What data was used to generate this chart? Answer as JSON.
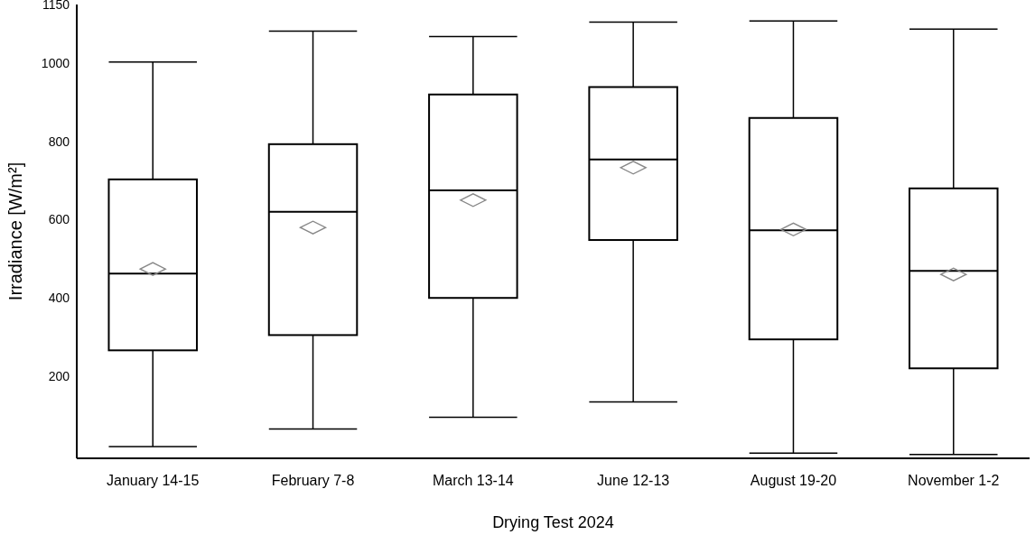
{
  "chart_data": {
    "type": "box",
    "xlabel": "Drying Test 2024",
    "ylabel": "Irradiance [W/m²]",
    "categories": [
      "January 14-15",
      "February 7-8",
      "March 13-14",
      "June 12-13",
      "August 19-20",
      "November 1-2"
    ],
    "ylim": [
      -10,
      1150
    ],
    "yticks": [
      200,
      400,
      600,
      800,
      1000,
      1150
    ],
    "grid": false,
    "boxes": [
      {
        "low": 20,
        "q1": 266,
        "median": 462,
        "q3": 703,
        "high": 1003,
        "mean": 474
      },
      {
        "low": 65,
        "q1": 305,
        "median": 620,
        "q3": 793,
        "high": 1082,
        "mean": 580
      },
      {
        "low": 95,
        "q1": 400,
        "median": 675,
        "q3": 920,
        "high": 1068,
        "mean": 650
      },
      {
        "low": 134,
        "q1": 548,
        "median": 754,
        "q3": 939,
        "high": 1105,
        "mean": 733
      },
      {
        "low": 3,
        "q1": 294,
        "median": 573,
        "q3": 860,
        "high": 1108,
        "mean": 575
      },
      {
        "low": 0,
        "q1": 220,
        "median": 469,
        "q3": 680,
        "high": 1087,
        "mean": 460
      }
    ]
  }
}
